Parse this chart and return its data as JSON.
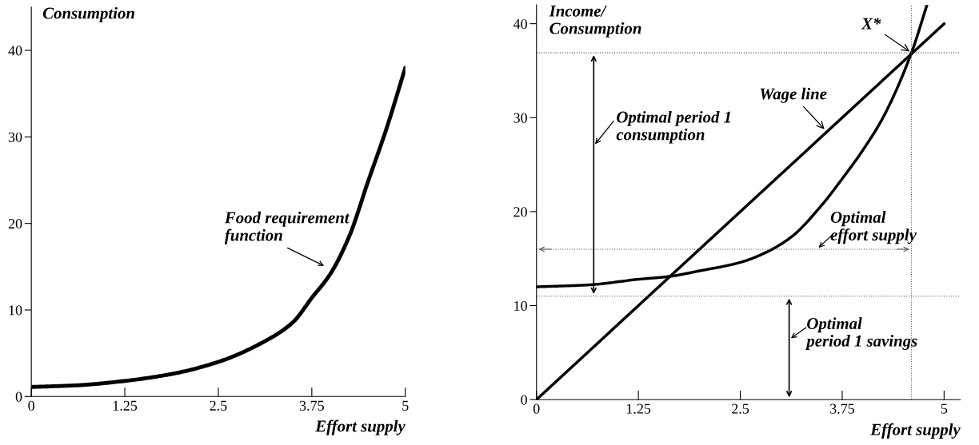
{
  "chart_data": [
    {
      "type": "line",
      "xlabel": "Effort supply",
      "ylabel": "Consumption",
      "xlim": [
        0,
        5
      ],
      "ylim": [
        0,
        45
      ],
      "xticks": [
        0,
        1.25,
        2.5,
        3.75,
        5
      ],
      "yticks": [
        0,
        10,
        20,
        30,
        40
      ],
      "grid": false,
      "legend": false,
      "series": [
        {
          "color": "#000000",
          "x": [
            0,
            0.625,
            1.25,
            1.875,
            2.5,
            3.125,
            3.5,
            3.75,
            4.0,
            4.25,
            4.5,
            4.75,
            5
          ],
          "values": [
            1.1,
            1.3,
            1.8,
            2.6,
            4.0,
            6.4,
            8.6,
            11.4,
            14.2,
            18.5,
            24.8,
            31,
            38
          ]
        }
      ],
      "annotations": [
        "Food requirement\nfunction"
      ]
    },
    {
      "type": "line",
      "xlabel": "Effort supply",
      "ylabel": "Income/\nConsumption",
      "xlim": [
        0,
        5.2
      ],
      "ylim": [
        0,
        42
      ],
      "xticks": [
        0,
        1.25,
        2.5,
        3.75,
        5
      ],
      "yticks": [
        0,
        10,
        20,
        30,
        40
      ],
      "grid": false,
      "legend": false,
      "series": [
        {
          "color": "#000000",
          "x": [
            0,
            0.625,
            1.25,
            1.625,
            2.0,
            2.5,
            2.8,
            3.125,
            3.5,
            3.75,
            4.0,
            4.25,
            4.6,
            4.79
          ],
          "values": [
            12,
            12.2,
            12.8,
            13.1,
            13.7,
            14.6,
            15.6,
            17.3,
            20.7,
            23.5,
            26.5,
            30,
            36.9,
            42
          ]
        },
        {
          "color": "#000000",
          "x": [
            0,
            5
          ],
          "values": [
            0,
            40
          ]
        }
      ],
      "ref_lines": [
        {
          "axis": "y",
          "value": 36.9,
          "line_style": "dotted"
        },
        {
          "axis": "y",
          "value": 11,
          "line_style": "dotted"
        },
        {
          "axis": "x",
          "value": 4.6,
          "line_style": "dotted"
        },
        {
          "axis": "y",
          "value": 16,
          "line_style": "dotted"
        }
      ],
      "annotations": [
        {
          "text": "X*",
          "x": 4.6,
          "y": 36.9
        },
        "Optimal period 1\nconsumption",
        {
          "text": "Wage line",
          "x": 3.55,
          "y": 28.6
        },
        "Optimal\neffort supply",
        "Optimal\nperiod 1 savings"
      ]
    }
  ]
}
